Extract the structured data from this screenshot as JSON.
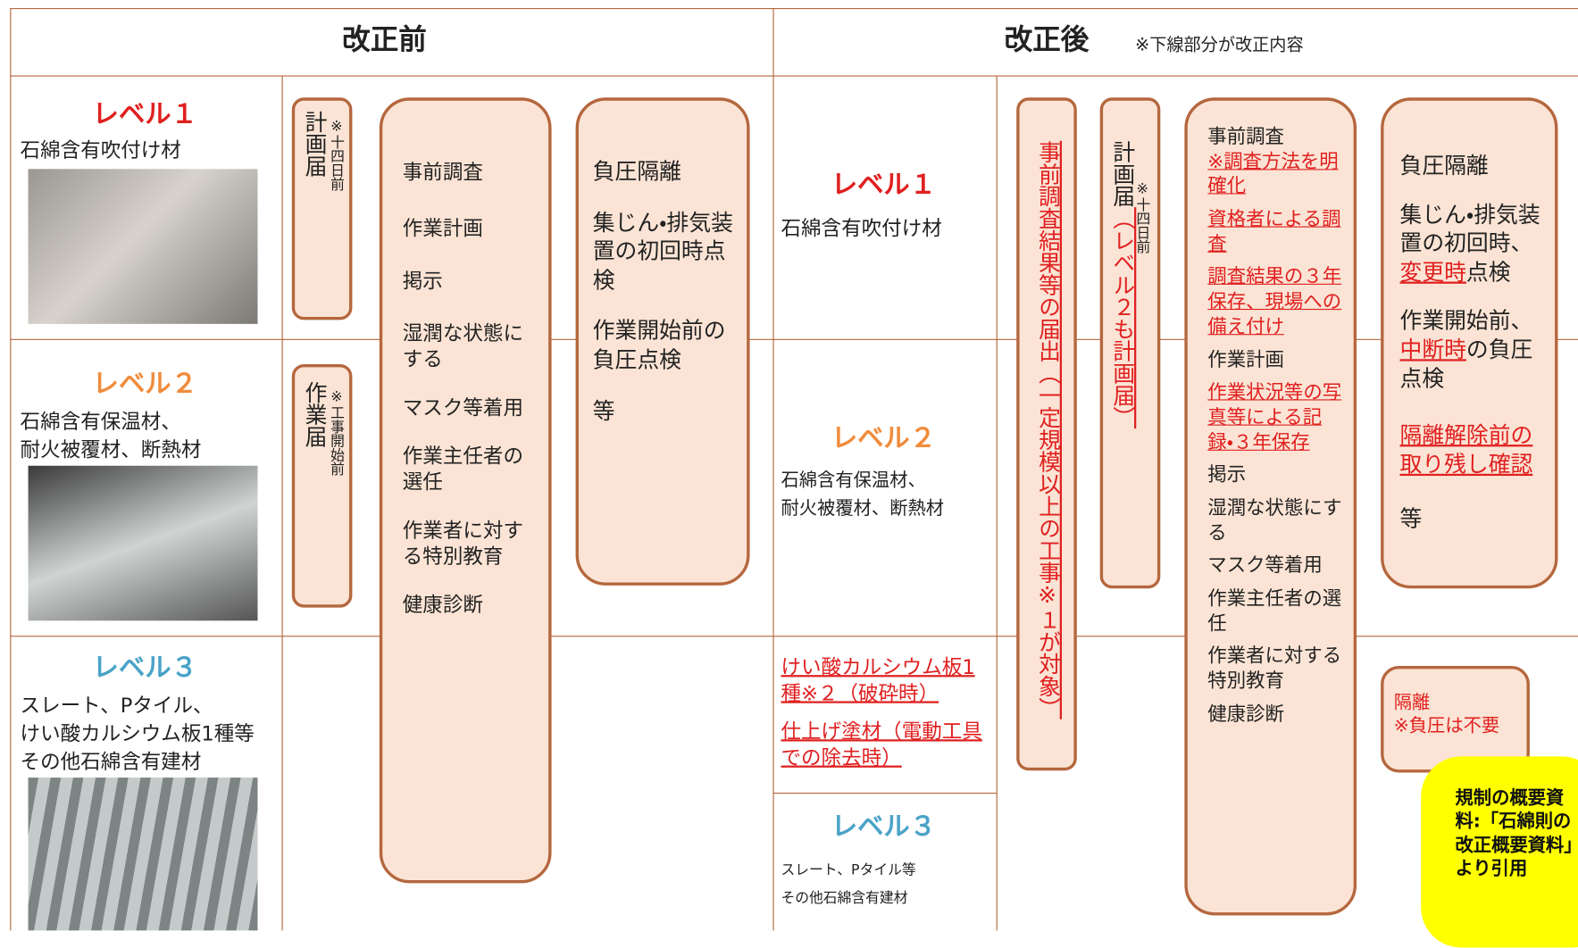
{
  "header": {
    "before": "改正前",
    "after": "改正後",
    "after_note": "※下線部分が改正内容"
  },
  "before": {
    "levels": [
      {
        "label": "レベル１",
        "materials": [
          "石綿含有吹付け材"
        ]
      },
      {
        "label": "レベル２",
        "materials": [
          "石綿含有保温材、",
          "耐火被覆材、断熱材"
        ]
      },
      {
        "label": "レベル３",
        "materials": [
          "スレート、Pタイル、",
          "けい酸カルシウム板1種等",
          "その他石綿含有建材"
        ]
      }
    ],
    "notices": [
      {
        "title": "計画届",
        "note": "※十四日前"
      },
      {
        "title": "作業届",
        "note": "※工事開始前"
      }
    ],
    "measures": [
      "事前調査",
      "作業計画",
      "掲示",
      "湿潤な状態にする",
      "マスク等着用",
      "作業主任者の選任",
      "作業者に対する特別教育",
      "健康診断"
    ],
    "isolation": [
      "負圧隔離",
      "集じん・排気装置の初回時点検",
      "作業開始前の負圧点検",
      "等"
    ]
  },
  "after": {
    "levels": [
      {
        "label": "レベル１",
        "materials": [
          "石綿含有吹付け材"
        ]
      },
      {
        "label": "レベル２",
        "materials": [
          "石綿含有保温材、",
          "耐火被覆材、断熱材"
        ],
        "additions": [
          "けい酸カルシウム板1種※２（破砕時）",
          "仕上げ塗材（電動工具での除去時）"
        ]
      },
      {
        "label": "レベル３",
        "materials": [
          "スレート、Pタイル等",
          "その他石綿含有建材"
        ]
      }
    ],
    "report": "事前調査結果等の届出（一定規模以上の工事※１が対象）",
    "notice": {
      "title": "計画届",
      "added": "（レベル２も計画届）",
      "note": "※十四日前"
    },
    "measures": [
      [
        "事前調査",
        "※調査方法を明確化"
      ],
      [
        "資格者による調査"
      ],
      [
        "調査結果の３年保存、現場への備え付け"
      ],
      [
        "作業計画"
      ],
      [
        "作業状況等の写真等による記録・３年保存"
      ],
      [
        "掲示"
      ],
      [
        "湿潤な状態にする"
      ],
      [
        "マスク等着用"
      ],
      [
        "作業主任者の選任"
      ],
      [
        "作業者に対する特別教育"
      ],
      [
        "健康診断"
      ]
    ],
    "isolation": [
      [
        "負圧隔離"
      ],
      [
        "集じん・排気装置の初回時、",
        "変更時",
        "点検"
      ],
      [
        "作業開始前、",
        "中断時",
        "の負圧点検"
      ],
      [
        "隔離解除前の取り残し確認"
      ],
      [
        "等"
      ]
    ],
    "level3_isolation": {
      "title": "隔離",
      "note": "※負圧は不要"
    }
  },
  "callout": "規制の概要資料:「石綿則の改正概要資料」より引用"
}
